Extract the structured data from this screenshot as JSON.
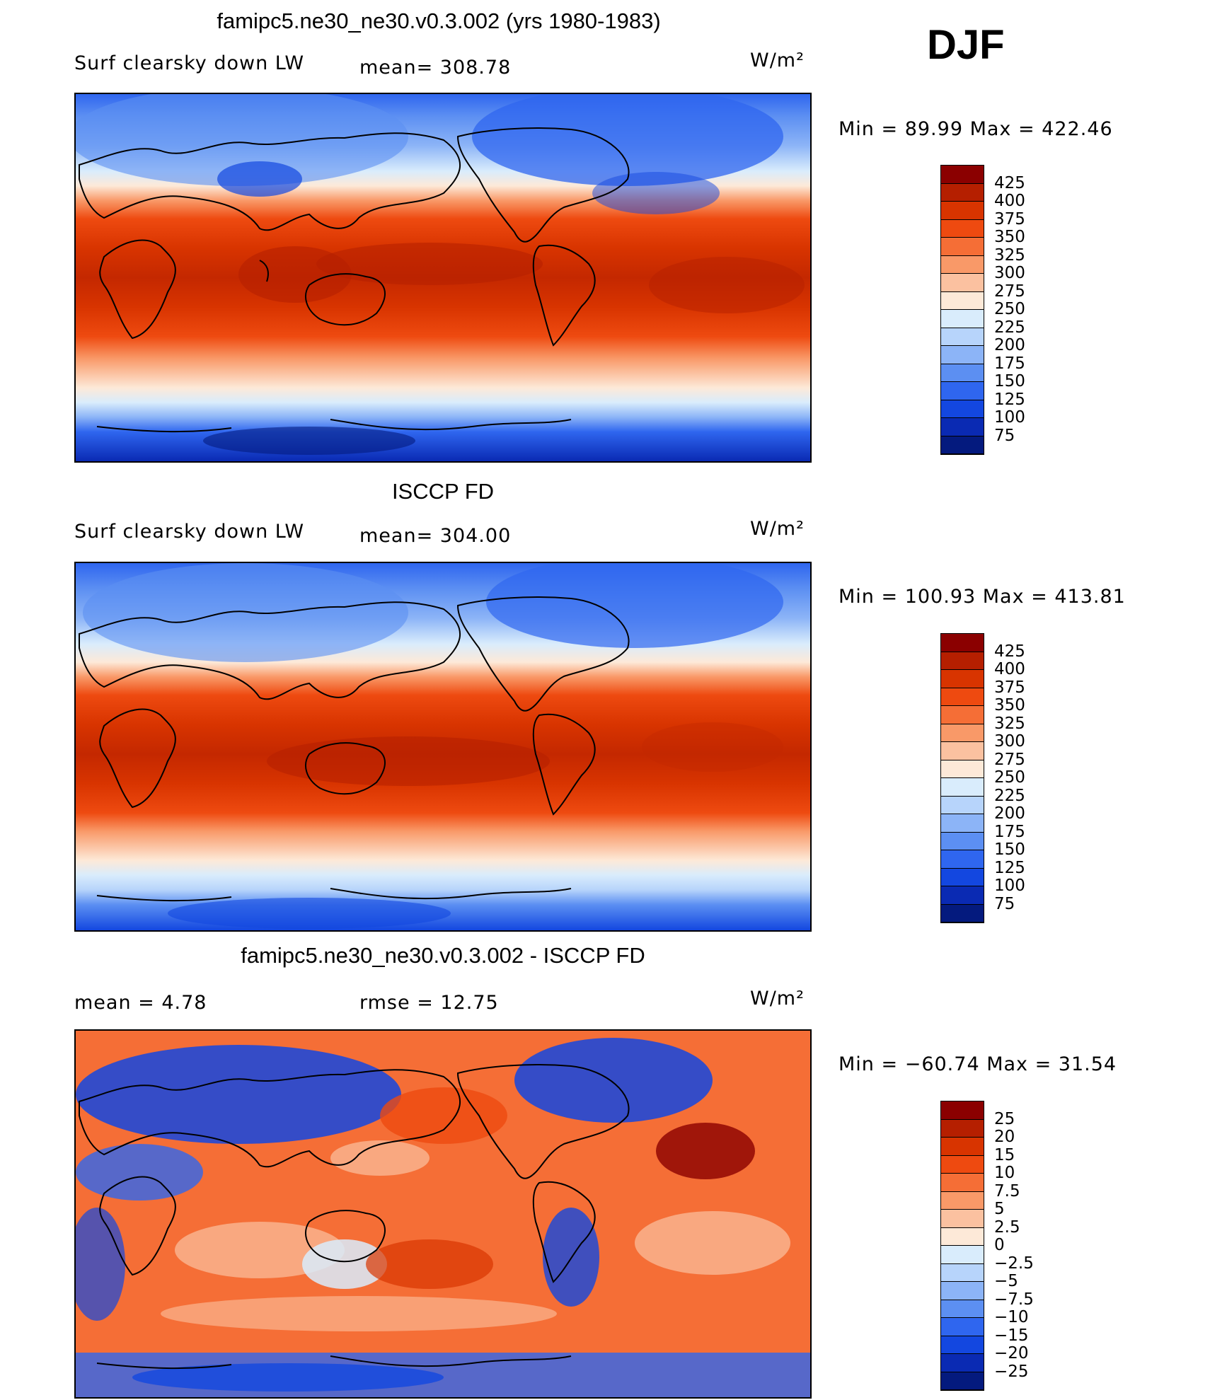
{
  "season": "DJF",
  "panels": [
    {
      "title": "famipc5.ne30_ne30.v0.3.002 (yrs 1980-1983)",
      "field_label": "Surf clearsky down LW",
      "stat_text": "mean= 308.78",
      "units": "W/m²",
      "minmax": "Min =  89.99 Max = 422.46",
      "colorbar": {
        "labels": [
          "425",
          "400",
          "375",
          "350",
          "325",
          "300",
          "275",
          "250",
          "225",
          "200",
          "175",
          "150",
          "125",
          "100",
          "75"
        ],
        "colors": [
          "#8b0000",
          "#b51f00",
          "#d83400",
          "#ee4a10",
          "#f56e36",
          "#f99968",
          "#fbc1a0",
          "#fde9d8",
          "#d9ecfc",
          "#b7d4fb",
          "#8cb4f7",
          "#5c8ff2",
          "#2f66ef",
          "#1347e0",
          "#0a2ab3",
          "#041a7e"
        ]
      },
      "map_style": "model"
    },
    {
      "title": "ISCCP FD",
      "field_label": "Surf clearsky down LW",
      "stat_text": "mean= 304.00",
      "units": "W/m²",
      "minmax": "Min = 100.93 Max = 413.81",
      "colorbar": {
        "labels": [
          "425",
          "400",
          "375",
          "350",
          "325",
          "300",
          "275",
          "250",
          "225",
          "200",
          "175",
          "150",
          "125",
          "100",
          "75"
        ],
        "colors": [
          "#8b0000",
          "#b51f00",
          "#d83400",
          "#ee4a10",
          "#f56e36",
          "#f99968",
          "#fbc1a0",
          "#fde9d8",
          "#d9ecfc",
          "#b7d4fb",
          "#8cb4f7",
          "#5c8ff2",
          "#2f66ef",
          "#1347e0",
          "#0a2ab3",
          "#041a7e"
        ]
      },
      "map_style": "obs"
    },
    {
      "title": "famipc5.ne30_ne30.v0.3.002 - ISCCP FD",
      "field_label": "mean =   4.78",
      "stat_text": "rmse =   12.75",
      "units": "W/m²",
      "minmax": "Min = −60.74 Max =  31.54",
      "colorbar": {
        "labels": [
          "25",
          "20",
          "15",
          "10",
          "7.5",
          "5",
          "2.5",
          "0",
          "−2.5",
          "−5",
          "−7.5",
          "−10",
          "−15",
          "−20",
          "−25"
        ],
        "colors": [
          "#8b0000",
          "#b51f00",
          "#d83400",
          "#ee4a10",
          "#f56e36",
          "#f99968",
          "#fbc1a0",
          "#fde9d8",
          "#d9ecfc",
          "#b7d4fb",
          "#8cb4f7",
          "#5c8ff2",
          "#2f66ef",
          "#1347e0",
          "#0a2ab3",
          "#041a7e"
        ]
      },
      "map_style": "diff"
    }
  ]
}
